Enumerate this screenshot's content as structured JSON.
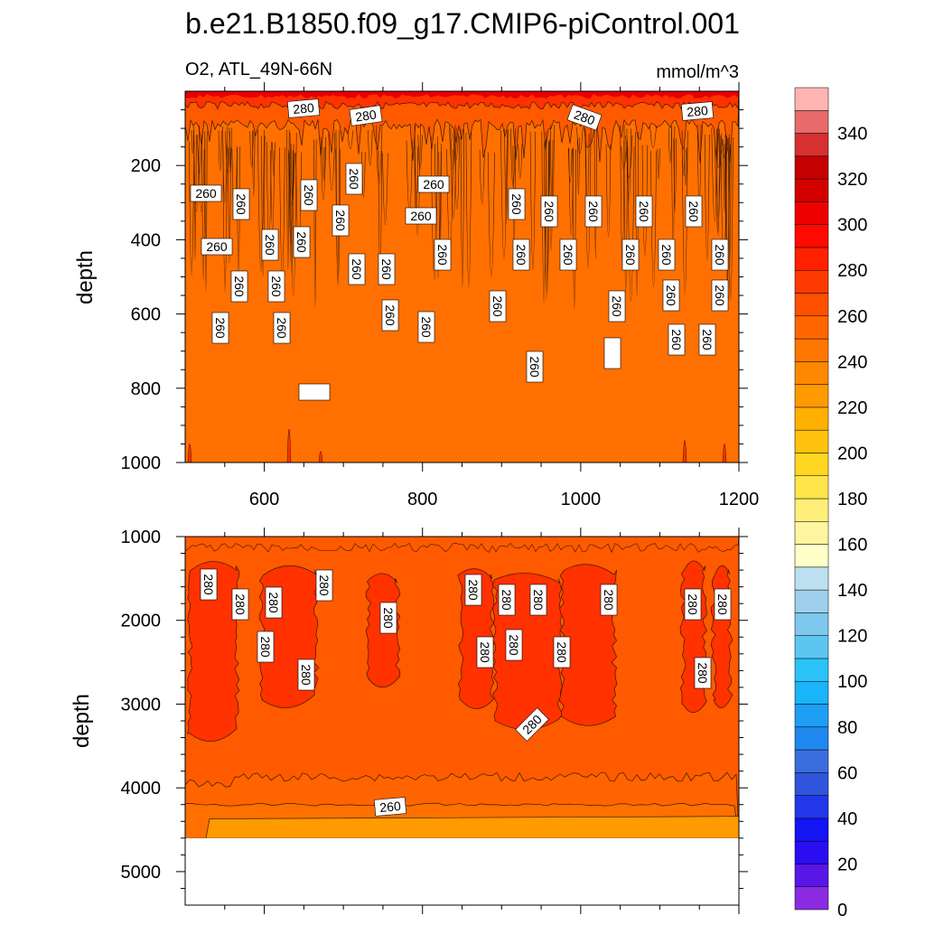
{
  "title": "b.e21.B1850.f09_g17.CMIP6-piControl.001",
  "chart_data": [
    {
      "type": "heatmap",
      "panel": "top",
      "left_label": "O2, ATL_49N-66N",
      "right_label": "mmol/m^3",
      "xlabel": "",
      "ylabel": "depth",
      "xlim": [
        500,
        1200
      ],
      "ylim": [
        1000,
        0
      ],
      "xticks": [
        "600",
        "800",
        "1000",
        "1200"
      ],
      "yticks": [
        "200",
        "400",
        "600",
        "800",
        "1000"
      ],
      "bands": [
        {
          "depth_from": 0,
          "depth_to": 50,
          "value": 300
        },
        {
          "depth_from": 50,
          "depth_to": 100,
          "value": 280
        },
        {
          "depth_from": 100,
          "depth_to": 1000,
          "value": 260
        }
      ],
      "contour_labels": [
        "280",
        "280",
        "280",
        "280",
        "260",
        "260",
        "260",
        "260",
        "260",
        "260",
        "260",
        "260",
        "260",
        "260",
        "260",
        "260",
        "260",
        "260",
        "260",
        "260",
        "260",
        "260",
        "260",
        "260",
        "260",
        "260",
        "260",
        "260",
        "260",
        "260",
        "260",
        "260",
        "260",
        "260",
        "260",
        "260",
        "260",
        "260",
        "260",
        "260"
      ]
    },
    {
      "type": "heatmap",
      "panel": "bottom",
      "xlabel": "",
      "ylabel": "depth",
      "xlim": [
        500,
        1200
      ],
      "ylim": [
        5400,
        1000
      ],
      "xticks": [
        "600",
        "800",
        "1000",
        "1200"
      ],
      "yticks": [
        "1000",
        "2000",
        "3000",
        "4000",
        "5000"
      ],
      "bands": [
        {
          "depth_from": 1000,
          "depth_to": 1100,
          "value": 270
        },
        {
          "depth_from": 1100,
          "depth_to": 3900,
          "value": 270
        },
        {
          "depth_from": 1400,
          "depth_to": 3300,
          "value": 280,
          "note_in_columns": true
        },
        {
          "depth_from": 3900,
          "depth_to": 4250,
          "value": 265
        },
        {
          "depth_from": 4250,
          "depth_to": 4600,
          "value": 250
        }
      ],
      "bottom_depth": 4600,
      "contour_labels": [
        "280",
        "280",
        "280",
        "280",
        "280",
        "280",
        "280",
        "280",
        "280",
        "280",
        "280",
        "280",
        "280",
        "280",
        "280",
        "280",
        "280",
        "280",
        "280",
        "260"
      ]
    }
  ],
  "colorbar": {
    "tick_labels": [
      "340",
      "320",
      "300",
      "280",
      "260",
      "240",
      "220",
      "200",
      "180",
      "160",
      "140",
      "120",
      "100",
      "80",
      "60",
      "40",
      "20",
      "0"
    ],
    "colors": [
      "#8a2be2",
      "#5a16e6",
      "#2a0ef0",
      "#1414f5",
      "#2238e8",
      "#2e55dc",
      "#3a6edc",
      "#1e88ee",
      "#1e9ef5",
      "#1ab4f8",
      "#29c3f8",
      "#5dc6f0",
      "#7ec8ee",
      "#9ed0ee",
      "#bde0f0",
      "#ffffc8",
      "#fff5a0",
      "#ffef78",
      "#ffe44a",
      "#ffd620",
      "#ffc210",
      "#ffb000",
      "#ff9a00",
      "#ff8800",
      "#ff7700",
      "#ff6600",
      "#ff5000",
      "#ff3a00",
      "#ff2000",
      "#ff0a00",
      "#ee0000",
      "#d40000",
      "#c40000",
      "#d63030",
      "#e86a6a",
      "#ffb4b4"
    ]
  },
  "colors": {
    "deep_red": "#e80000",
    "red_280": "#ff3200",
    "orange_270": "#ff5a00",
    "orange_260": "#ff7000",
    "orange_250": "#ff9a00",
    "contour_line": "#3a1a00"
  }
}
